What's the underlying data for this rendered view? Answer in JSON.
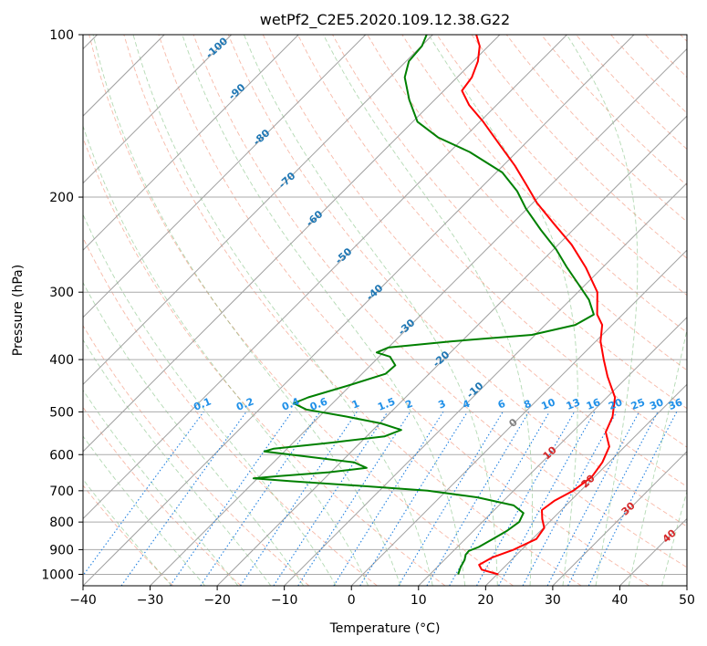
{
  "chart_data": {
    "type": "line",
    "subtype": "skew-t log-p diagram",
    "title": "wetPf2_C2E5.2020.109.12.38.G22",
    "xlabel": "Temperature (°C)",
    "ylabel": "Pressure (hPa)",
    "xlim": [
      -40,
      50
    ],
    "ylim": [
      1050,
      100
    ],
    "y_scale": "log",
    "grid": true,
    "x_ticks": [
      "−40",
      "−30",
      "−20",
      "−10",
      "0",
      "10",
      "20",
      "30",
      "40",
      "50"
    ],
    "y_ticks": [
      "100",
      "200",
      "300",
      "400",
      "500",
      "600",
      "700",
      "800",
      "900",
      "1000"
    ],
    "x_tick_values": [
      -40,
      -30,
      -20,
      -10,
      0,
      10,
      20,
      30,
      40,
      50
    ],
    "y_tick_values": [
      100,
      200,
      300,
      400,
      500,
      600,
      700,
      800,
      900,
      1000
    ],
    "isotherm_labels": [
      "-100",
      "-90",
      "-80",
      "-70",
      "-60",
      "-50",
      "-40",
      "-30",
      "-20",
      "-10",
      "0",
      "10",
      "20",
      "30",
      "40"
    ],
    "isotherm_label_values": [
      -100,
      -90,
      -80,
      -70,
      -60,
      -50,
      -40,
      -30,
      -20,
      -10,
      0,
      10,
      20,
      30,
      40
    ],
    "mixing_ratio_labels": [
      "0.1",
      "0.2",
      "0.4",
      "0.6",
      "1",
      "1.5",
      "2",
      "3",
      "4",
      "6",
      "8",
      "10",
      "13",
      "16",
      "20",
      "25",
      "30",
      "36"
    ],
    "mixing_ratio_values": [
      0.1,
      0.2,
      0.4,
      0.6,
      1,
      1.5,
      2,
      3,
      4,
      6,
      8,
      10,
      13,
      16,
      20,
      25,
      30,
      36
    ],
    "series": [
      {
        "color": "#ff0000",
        "points": [
          [
            1000,
            20.2
          ],
          [
            980,
            17.0
          ],
          [
            960,
            15.9
          ],
          [
            930,
            16.8
          ],
          [
            900,
            18.8
          ],
          [
            860,
            20.6
          ],
          [
            820,
            20.1
          ],
          [
            790,
            18.5
          ],
          [
            760,
            17.1
          ],
          [
            730,
            17.6
          ],
          [
            700,
            18.9
          ],
          [
            660,
            19.6
          ],
          [
            620,
            19.0
          ],
          [
            580,
            17.7
          ],
          [
            545,
            15.0
          ],
          [
            510,
            13.7
          ],
          [
            470,
            11.2
          ],
          [
            430,
            7.0
          ],
          [
            400,
            3.9
          ],
          [
            370,
            0.7
          ],
          [
            345,
            -1.5
          ],
          [
            330,
            -3.8
          ],
          [
            300,
            -7.1
          ],
          [
            270,
            -12.5
          ],
          [
            245,
            -18.0
          ],
          [
            225,
            -23.5
          ],
          [
            205,
            -29.4
          ],
          [
            190,
            -33.6
          ],
          [
            175,
            -38.2
          ],
          [
            160,
            -43.6
          ],
          [
            145,
            -49.5
          ],
          [
            135,
            -54.1
          ],
          [
            127,
            -57.3
          ],
          [
            120,
            -57.8
          ],
          [
            112,
            -59.3
          ],
          [
            105,
            -61.3
          ],
          [
            100,
            -63.5
          ]
        ]
      },
      {
        "color": "#008000",
        "points": [
          [
            1000,
            14.2
          ],
          [
            970,
            13.5
          ],
          [
            940,
            13.0
          ],
          [
            920,
            12.4
          ],
          [
            905,
            12.3
          ],
          [
            890,
            13.2
          ],
          [
            860,
            14.1
          ],
          [
            830,
            15.0
          ],
          [
            800,
            15.5
          ],
          [
            770,
            14.8
          ],
          [
            745,
            12.2
          ],
          [
            720,
            5.6
          ],
          [
            700,
            -2.8
          ],
          [
            685,
            -14.0
          ],
          [
            672,
            -24.6
          ],
          [
            664,
            -30.6
          ],
          [
            658,
            -27.5
          ],
          [
            647,
            -20.3
          ],
          [
            635,
            -15.3
          ],
          [
            620,
            -18.0
          ],
          [
            605,
            -25.9
          ],
          [
            592,
            -33.0
          ],
          [
            585,
            -32.0
          ],
          [
            570,
            -24.3
          ],
          [
            555,
            -17.3
          ],
          [
            540,
            -15.8
          ],
          [
            525,
            -19.8
          ],
          [
            510,
            -26.0
          ],
          [
            495,
            -33.0
          ],
          [
            482,
            -35.8
          ],
          [
            470,
            -34.5
          ],
          [
            445,
            -30.0
          ],
          [
            425,
            -26.5
          ],
          [
            410,
            -26.3
          ],
          [
            395,
            -28.4
          ],
          [
            388,
            -31.0
          ],
          [
            380,
            -30.0
          ],
          [
            370,
            -21.5
          ],
          [
            360,
            -10.5
          ],
          [
            345,
            -5.5
          ],
          [
            330,
            -4.3
          ],
          [
            310,
            -7.2
          ],
          [
            290,
            -11.1
          ],
          [
            270,
            -15.3
          ],
          [
            250,
            -19.6
          ],
          [
            230,
            -24.8
          ],
          [
            210,
            -30.2
          ],
          [
            195,
            -34.1
          ],
          [
            180,
            -39.1
          ],
          [
            165,
            -47.0
          ],
          [
            155,
            -53.9
          ],
          [
            145,
            -59.3
          ],
          [
            132,
            -63.8
          ],
          [
            120,
            -67.8
          ],
          [
            112,
            -69.6
          ],
          [
            105,
            -69.9
          ],
          [
            100,
            -70.9
          ]
        ]
      }
    ]
  }
}
